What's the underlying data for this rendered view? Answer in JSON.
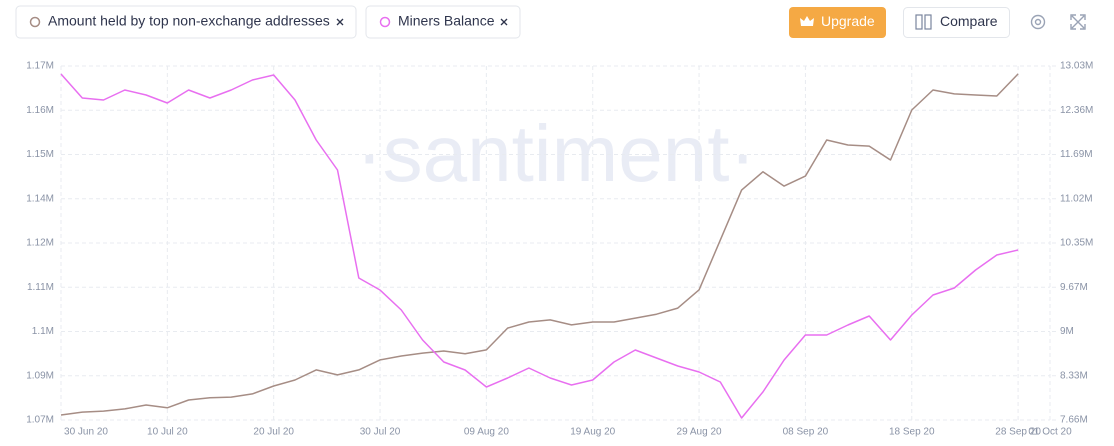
{
  "toolbar": {
    "upgrade": "Upgrade",
    "compare": "Compare"
  },
  "chart_data": {
    "type": "line",
    "watermark": "·santiment·",
    "x": [
      "2020-06-30",
      "2020-07-02",
      "2020-07-04",
      "2020-07-06",
      "2020-07-08",
      "2020-07-10",
      "2020-07-12",
      "2020-07-14",
      "2020-07-16",
      "2020-07-18",
      "2020-07-20",
      "2020-07-22",
      "2020-07-24",
      "2020-07-26",
      "2020-07-28",
      "2020-07-30",
      "2020-08-01",
      "2020-08-03",
      "2020-08-05",
      "2020-08-07",
      "2020-08-09",
      "2020-08-11",
      "2020-08-13",
      "2020-08-15",
      "2020-08-17",
      "2020-08-19",
      "2020-08-21",
      "2020-08-23",
      "2020-08-25",
      "2020-08-27",
      "2020-08-29",
      "2020-08-31",
      "2020-09-02",
      "2020-09-04",
      "2020-09-06",
      "2020-09-08",
      "2020-09-10",
      "2020-09-12",
      "2020-09-14",
      "2020-09-16",
      "2020-09-18",
      "2020-09-20",
      "2020-09-22",
      "2020-09-24",
      "2020-09-26",
      "2020-09-28"
    ],
    "xlim": [
      "2020-06-30",
      "2020-10-01"
    ],
    "xticks": [
      {
        "value": "2020-06-30",
        "label": "30 Jun 20"
      },
      {
        "value": "2020-07-10",
        "label": "10 Jul 20"
      },
      {
        "value": "2020-07-20",
        "label": "20 Jul 20"
      },
      {
        "value": "2020-07-30",
        "label": "30 Jul 20"
      },
      {
        "value": "2020-08-09",
        "label": "09 Aug 20"
      },
      {
        "value": "2020-08-19",
        "label": "19 Aug 20"
      },
      {
        "value": "2020-08-29",
        "label": "29 Aug 20"
      },
      {
        "value": "2020-09-08",
        "label": "08 Sep 20"
      },
      {
        "value": "2020-09-18",
        "label": "18 Sep 20"
      },
      {
        "value": "2020-09-28",
        "label": "28 Sep 20"
      },
      {
        "value": "2020-10-01",
        "label": "01 Oct 20"
      }
    ],
    "ylim": [
      1073500,
      1172500
    ],
    "yticks": [
      {
        "value": 1073500,
        "label": "1.07M"
      },
      {
        "value": 1085875,
        "label": "1.09M"
      },
      {
        "value": 1098250,
        "label": "1.1M"
      },
      {
        "value": 1110625,
        "label": "1.11M"
      },
      {
        "value": 1123000,
        "label": "1.12M"
      },
      {
        "value": 1135375,
        "label": "1.14M"
      },
      {
        "value": 1147750,
        "label": "1.15M"
      },
      {
        "value": 1160125,
        "label": "1.16M"
      },
      {
        "value": 1172500,
        "label": "1.17M"
      }
    ],
    "y2lim": [
      7660000,
      13030000
    ],
    "y2ticks": [
      {
        "value": 7660000,
        "label": "7.66M"
      },
      {
        "value": 8331250,
        "label": "8.33M"
      },
      {
        "value": 9002500,
        "label": "9M"
      },
      {
        "value": 9673750,
        "label": "9.67M"
      },
      {
        "value": 10345000,
        "label": "10.35M"
      },
      {
        "value": 11016250,
        "label": "11.02M"
      },
      {
        "value": 11687500,
        "label": "11.69M"
      },
      {
        "value": 12358750,
        "label": "12.36M"
      },
      {
        "value": 13030000,
        "label": "13.03M"
      }
    ],
    "grid": true,
    "series": [
      {
        "name": "Amount held by top non-exchange addresses",
        "color": "#a68d85",
        "values": [
          1074900,
          1075700,
          1076000,
          1076600,
          1077700,
          1076900,
          1079100,
          1079700,
          1079900,
          1080800,
          1083000,
          1084700,
          1087500,
          1086100,
          1087500,
          1090300,
          1091400,
          1092200,
          1092800,
          1092000,
          1093100,
          1099200,
          1100900,
          1101500,
          1100100,
          1100900,
          1100900,
          1102000,
          1103100,
          1104800,
          1109900,
          1123800,
          1137800,
          1142900,
          1138900,
          1141700,
          1151800,
          1150400,
          1150100,
          1146200,
          1160200,
          1165800,
          1164700,
          1164400,
          1164100,
          1170300
        ]
      },
      {
        "name": "Miners Balance",
        "color": "#e86ff0",
        "axis": "y2",
        "values": [
          12909000,
          12544000,
          12514000,
          12666000,
          12590000,
          12469000,
          12666000,
          12544000,
          12666000,
          12817000,
          12893000,
          12514000,
          11907000,
          11452000,
          9814000,
          9632000,
          9329000,
          8874000,
          8540000,
          8418000,
          8161000,
          8297000,
          8449000,
          8297000,
          8191000,
          8267000,
          8540000,
          8722000,
          8600000,
          8479000,
          8388000,
          8236000,
          7690000,
          8085000,
          8570000,
          8949000,
          8949000,
          9101000,
          9238000,
          8874000,
          9253000,
          9556000,
          9662000,
          9935000,
          10163000,
          10239000
        ]
      }
    ]
  }
}
